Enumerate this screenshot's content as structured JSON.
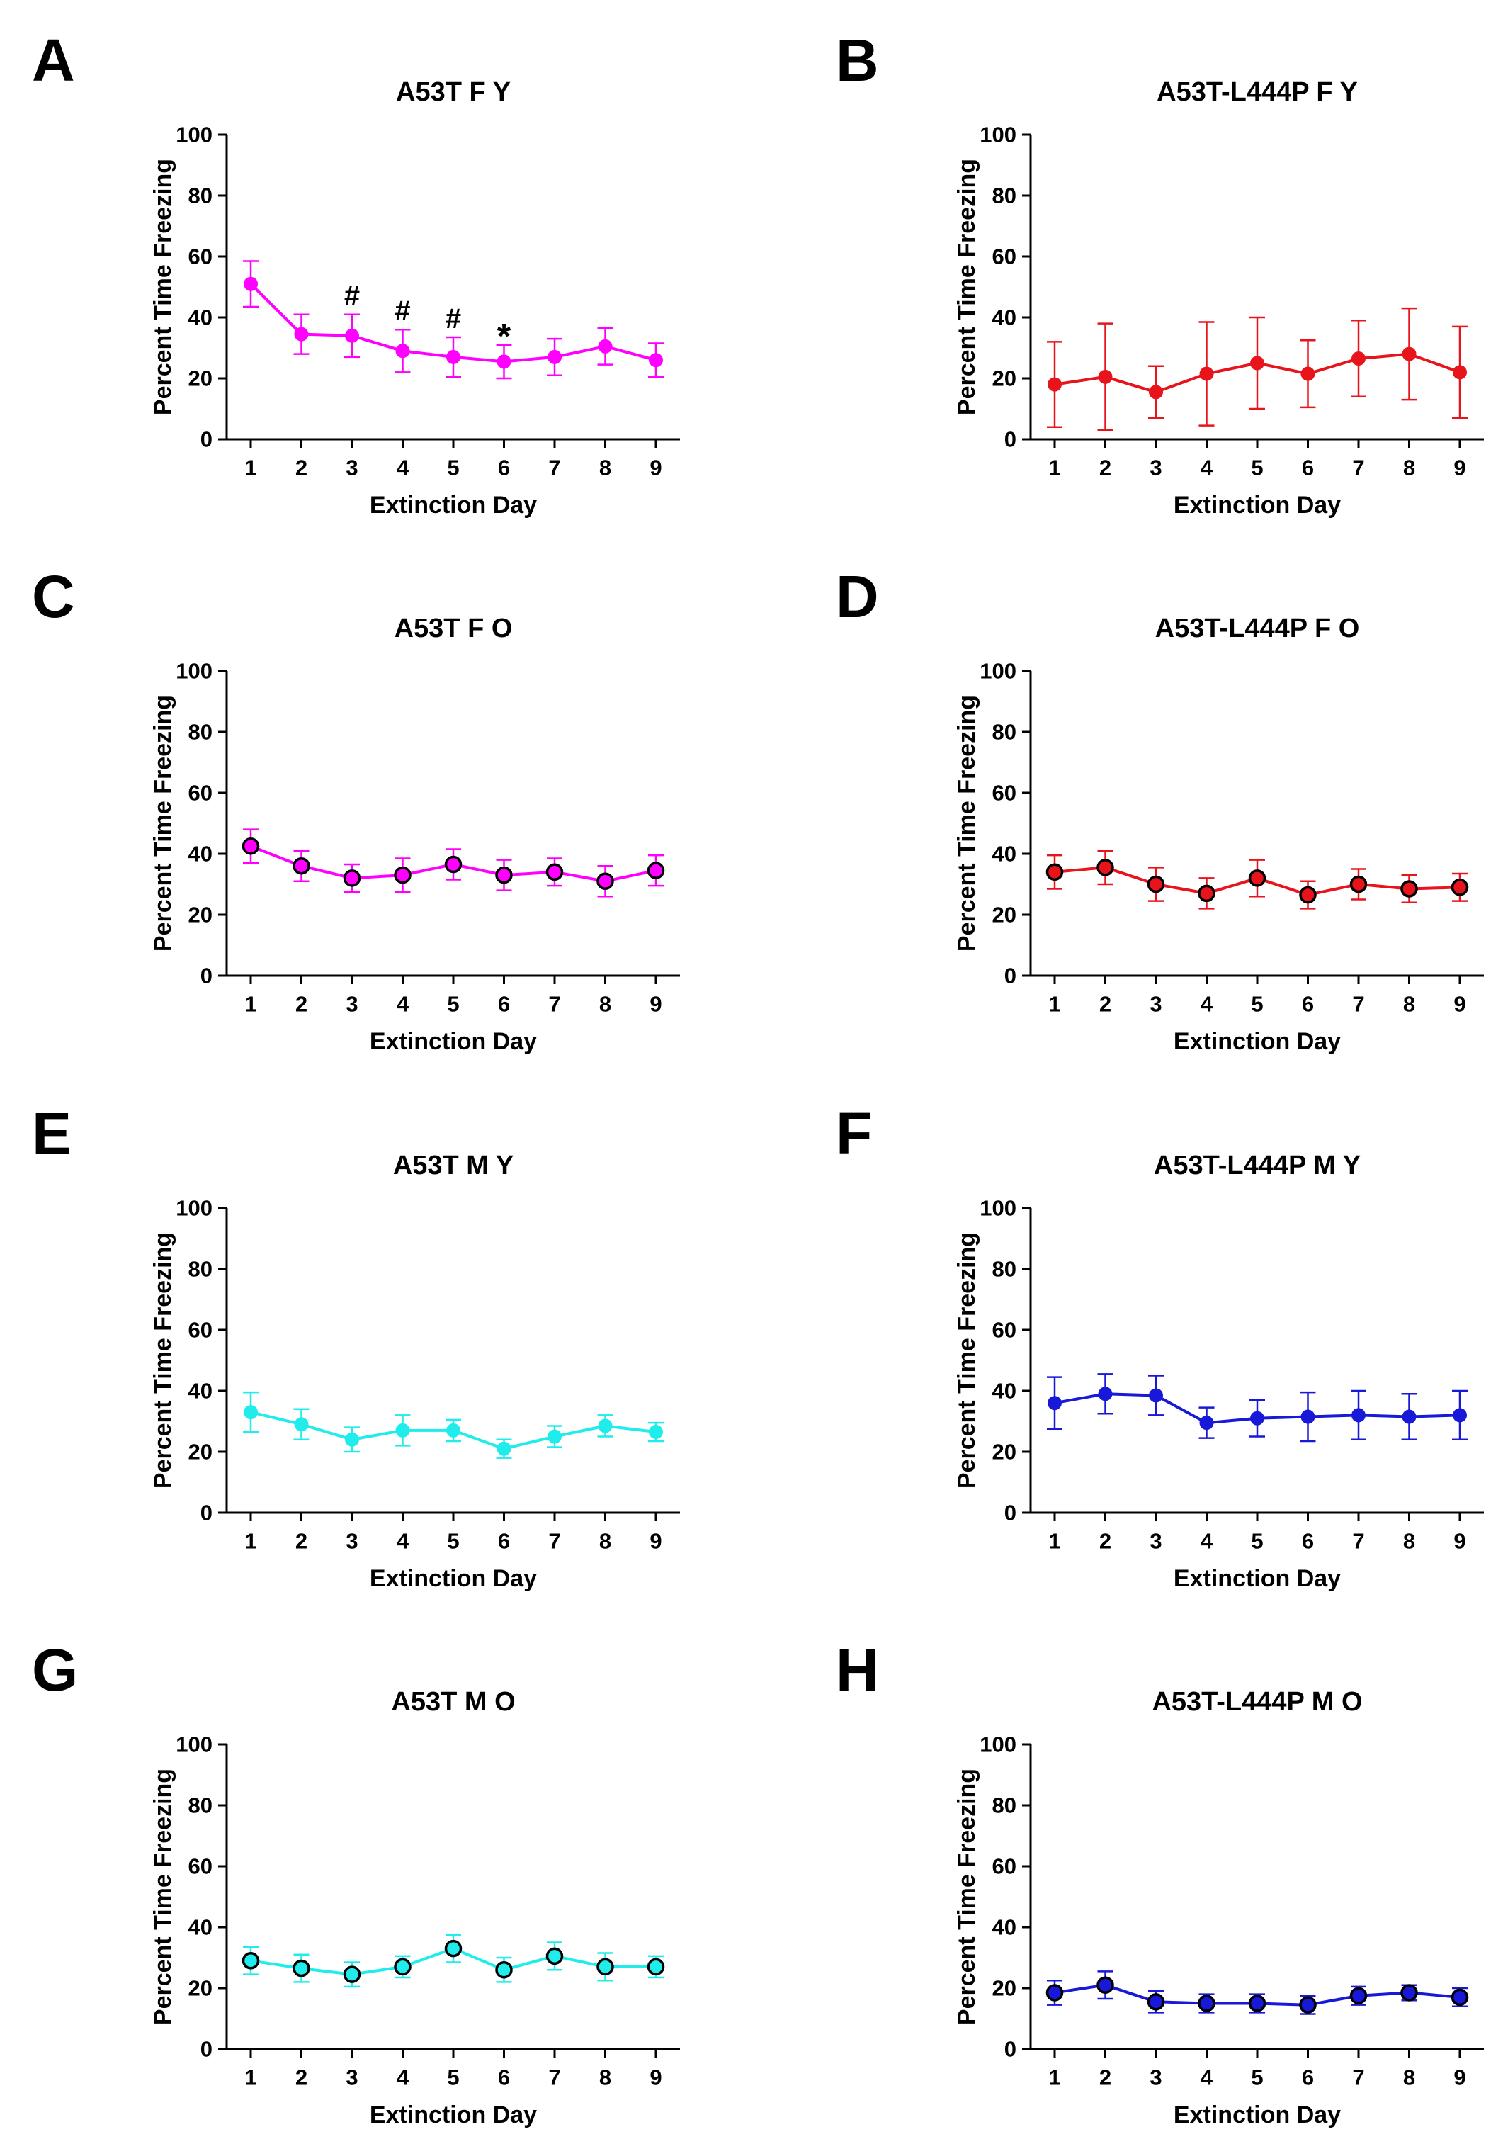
{
  "figure": {
    "panels": [
      "A",
      "B",
      "C",
      "D",
      "E",
      "F",
      "G",
      "H"
    ]
  },
  "chart_data": [
    {
      "panel": "A",
      "type": "line",
      "title": "A53T F Y",
      "xlabel": "Extinction Day",
      "ylabel": "Percent Time Freezing",
      "ylim": [
        0,
        100
      ],
      "yticks": [
        0,
        20,
        40,
        60,
        80,
        100
      ],
      "categories": [
        "1",
        "2",
        "3",
        "4",
        "5",
        "6",
        "7",
        "8",
        "9"
      ],
      "series": [
        {
          "name": "A53T F Y",
          "color": "#ff00ff",
          "marker": "filled",
          "values": [
            51,
            34.5,
            34,
            29,
            27,
            25.5,
            27,
            30.5,
            26
          ],
          "errors": [
            7.5,
            6.5,
            7,
            7,
            6.5,
            5.5,
            6,
            6,
            5.5
          ]
        }
      ],
      "annotations": [
        {
          "day": "3",
          "text": "#"
        },
        {
          "day": "4",
          "text": "#"
        },
        {
          "day": "5",
          "text": "#"
        },
        {
          "day": "6",
          "text": "*"
        }
      ]
    },
    {
      "panel": "B",
      "type": "line",
      "title": "A53T-L444P F Y",
      "xlabel": "Extinction Day",
      "ylabel": "Percent Time Freezing",
      "ylim": [
        0,
        100
      ],
      "yticks": [
        0,
        20,
        40,
        60,
        80,
        100
      ],
      "categories": [
        "1",
        "2",
        "3",
        "4",
        "5",
        "6",
        "7",
        "8",
        "9"
      ],
      "series": [
        {
          "name": "A53T-L444P F Y",
          "color": "#e8141b",
          "marker": "filled",
          "values": [
            18,
            20.5,
            15.5,
            21.5,
            25,
            21.5,
            26.5,
            28,
            22
          ],
          "errors": [
            14,
            17.5,
            8.5,
            17,
            15,
            11,
            12.5,
            15,
            15
          ]
        }
      ],
      "annotations": []
    },
    {
      "panel": "C",
      "type": "line",
      "title": "A53T F O",
      "xlabel": "Extinction Day",
      "ylabel": "Percent Time Freezing",
      "ylim": [
        0,
        100
      ],
      "yticks": [
        0,
        20,
        40,
        60,
        80,
        100
      ],
      "categories": [
        "1",
        "2",
        "3",
        "4",
        "5",
        "6",
        "7",
        "8",
        "9"
      ],
      "series": [
        {
          "name": "A53T F O",
          "color": "#ff00ff",
          "marker": "outlined",
          "values": [
            42.5,
            36,
            32,
            33,
            36.5,
            33,
            34,
            31,
            34.5
          ],
          "errors": [
            5.5,
            5,
            4.5,
            5.5,
            5,
            5,
            4.5,
            5,
            5
          ]
        }
      ],
      "annotations": []
    },
    {
      "panel": "D",
      "type": "line",
      "title": "A53T-L444P F O",
      "xlabel": "Extinction Day",
      "ylabel": "Percent Time Freezing",
      "ylim": [
        0,
        100
      ],
      "yticks": [
        0,
        20,
        40,
        60,
        80,
        100
      ],
      "categories": [
        "1",
        "2",
        "3",
        "4",
        "5",
        "6",
        "7",
        "8",
        "9"
      ],
      "series": [
        {
          "name": "A53T-L444P F O",
          "color": "#e8141b",
          "marker": "outlined",
          "values": [
            34,
            35.5,
            30,
            27,
            32,
            26.5,
            30,
            28.5,
            29
          ],
          "errors": [
            5.5,
            5.5,
            5.5,
            5,
            6,
            4.5,
            5,
            4.5,
            4.5
          ]
        }
      ],
      "annotations": []
    },
    {
      "panel": "E",
      "type": "line",
      "title": "A53T M Y",
      "xlabel": "Extinction Day",
      "ylabel": "Percent Time Freezing",
      "ylim": [
        0,
        100
      ],
      "yticks": [
        0,
        20,
        40,
        60,
        80,
        100
      ],
      "categories": [
        "1",
        "2",
        "3",
        "4",
        "5",
        "6",
        "7",
        "8",
        "9"
      ],
      "series": [
        {
          "name": "A53T M Y",
          "color": "#21ecec",
          "marker": "filled",
          "values": [
            33,
            29,
            24,
            27,
            27,
            21,
            25,
            28.5,
            26.5
          ],
          "errors": [
            6.5,
            5,
            4,
            5,
            3.5,
            3,
            3.5,
            3.5,
            3
          ]
        }
      ],
      "annotations": []
    },
    {
      "panel": "F",
      "type": "line",
      "title": "A53T-L444P M Y",
      "xlabel": "Extinction Day",
      "ylabel": "Percent Time Freezing",
      "ylim": [
        0,
        100
      ],
      "yticks": [
        0,
        20,
        40,
        60,
        80,
        100
      ],
      "categories": [
        "1",
        "2",
        "3",
        "4",
        "5",
        "6",
        "7",
        "8",
        "9"
      ],
      "series": [
        {
          "name": "A53T-L444P M Y",
          "color": "#1818d8",
          "marker": "filled",
          "values": [
            36,
            39,
            38.5,
            29.5,
            31,
            31.5,
            32,
            31.5,
            32
          ],
          "errors": [
            8.5,
            6.5,
            6.5,
            5,
            6,
            8,
            8,
            7.5,
            8
          ]
        }
      ],
      "annotations": []
    },
    {
      "panel": "G",
      "type": "line",
      "title": "A53T M O",
      "xlabel": "Extinction Day",
      "ylabel": "Percent Time Freezing",
      "ylim": [
        0,
        100
      ],
      "yticks": [
        0,
        20,
        40,
        60,
        80,
        100
      ],
      "categories": [
        "1",
        "2",
        "3",
        "4",
        "5",
        "6",
        "7",
        "8",
        "9"
      ],
      "series": [
        {
          "name": "A53T M O",
          "color": "#21ecec",
          "marker": "outlined",
          "values": [
            29,
            26.5,
            24.5,
            27,
            33,
            26,
            30.5,
            27,
            27
          ],
          "errors": [
            4.5,
            4.5,
            4,
            3.5,
            4.5,
            4,
            4.5,
            4.5,
            3.5
          ]
        }
      ],
      "annotations": []
    },
    {
      "panel": "H",
      "type": "line",
      "title": "A53T-L444P M O",
      "xlabel": "Extinction Day",
      "ylabel": "Percent Time Freezing",
      "ylim": [
        0,
        100
      ],
      "yticks": [
        0,
        20,
        40,
        60,
        80,
        100
      ],
      "categories": [
        "1",
        "2",
        "3",
        "4",
        "5",
        "6",
        "7",
        "8",
        "9"
      ],
      "series": [
        {
          "name": "A53T-L444P M O",
          "color": "#1818d8",
          "marker": "outlined",
          "values": [
            18.5,
            21,
            15.5,
            15,
            15,
            14.5,
            17.5,
            18.5,
            17
          ],
          "errors": [
            4,
            4.5,
            3.5,
            3,
            3,
            3,
            3,
            2.5,
            3
          ]
        }
      ],
      "annotations": []
    }
  ]
}
